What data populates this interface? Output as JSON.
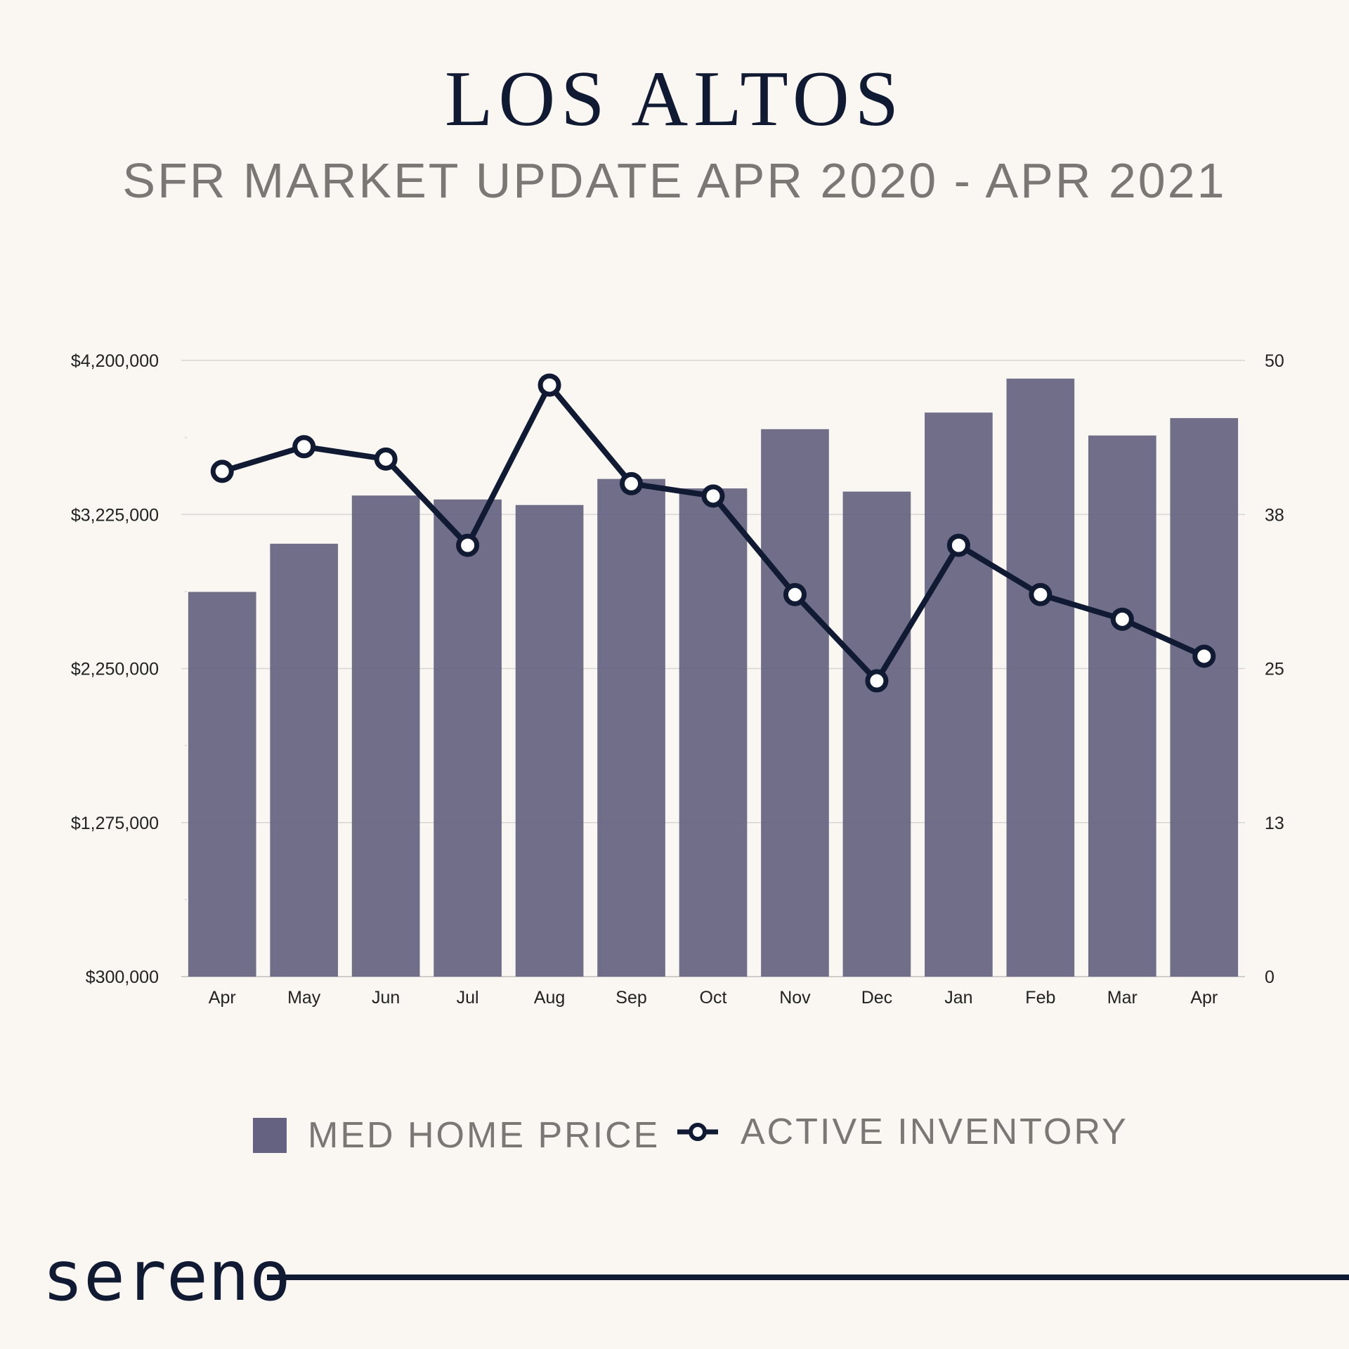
{
  "header": {
    "title": "LOS ALTOS",
    "subtitle": "SFR MARKET UPDATE APR 2020 - APR 2021"
  },
  "legend": {
    "bar_label": "MED HOME PRICE",
    "line_label": "ACTIVE INVENTORY"
  },
  "brand": {
    "name": "sereno"
  },
  "colors": {
    "bar": "#646280",
    "line": "#111a33",
    "marker_fill": "#ffffff",
    "grid": "#d8d6d4",
    "background": "#faf7f3"
  },
  "chart_data": {
    "type": "bar",
    "title": "LOS ALTOS",
    "subtitle": "SFR MARKET UPDATE APR 2020 - APR 2021",
    "categories": [
      "Apr",
      "May",
      "Jun",
      "Jul",
      "Aug",
      "Sep",
      "Oct",
      "Nov",
      "Dec",
      "Jan",
      "Feb",
      "Mar",
      "Apr"
    ],
    "series": [
      {
        "name": "MED HOME PRICE",
        "type": "bar",
        "axis": "left",
        "values": [
          2735000,
          3040000,
          3345000,
          3320000,
          3285000,
          3450000,
          3390000,
          3765000,
          3370000,
          3870000,
          4085000,
          3725000,
          3835000
        ]
      },
      {
        "name": "ACTIVE INVENTORY",
        "type": "line",
        "axis": "right",
        "values": [
          41,
          43,
          42,
          35,
          48,
          40,
          39,
          31,
          24,
          35,
          31,
          29,
          26
        ]
      }
    ],
    "left_axis": {
      "range": [
        300000,
        4200000
      ],
      "ticks": [
        300000,
        1275000,
        2250000,
        3225000,
        4200000
      ],
      "tick_labels": [
        "$300,000",
        "$1,275,000",
        "$2,250,000",
        "$3,225,000",
        "$4,200,000"
      ]
    },
    "right_axis": {
      "range": [
        0,
        50
      ],
      "tick_labels": [
        "0",
        "13",
        "25",
        "38",
        "50"
      ]
    },
    "grid": true,
    "legend_position": "bottom"
  }
}
